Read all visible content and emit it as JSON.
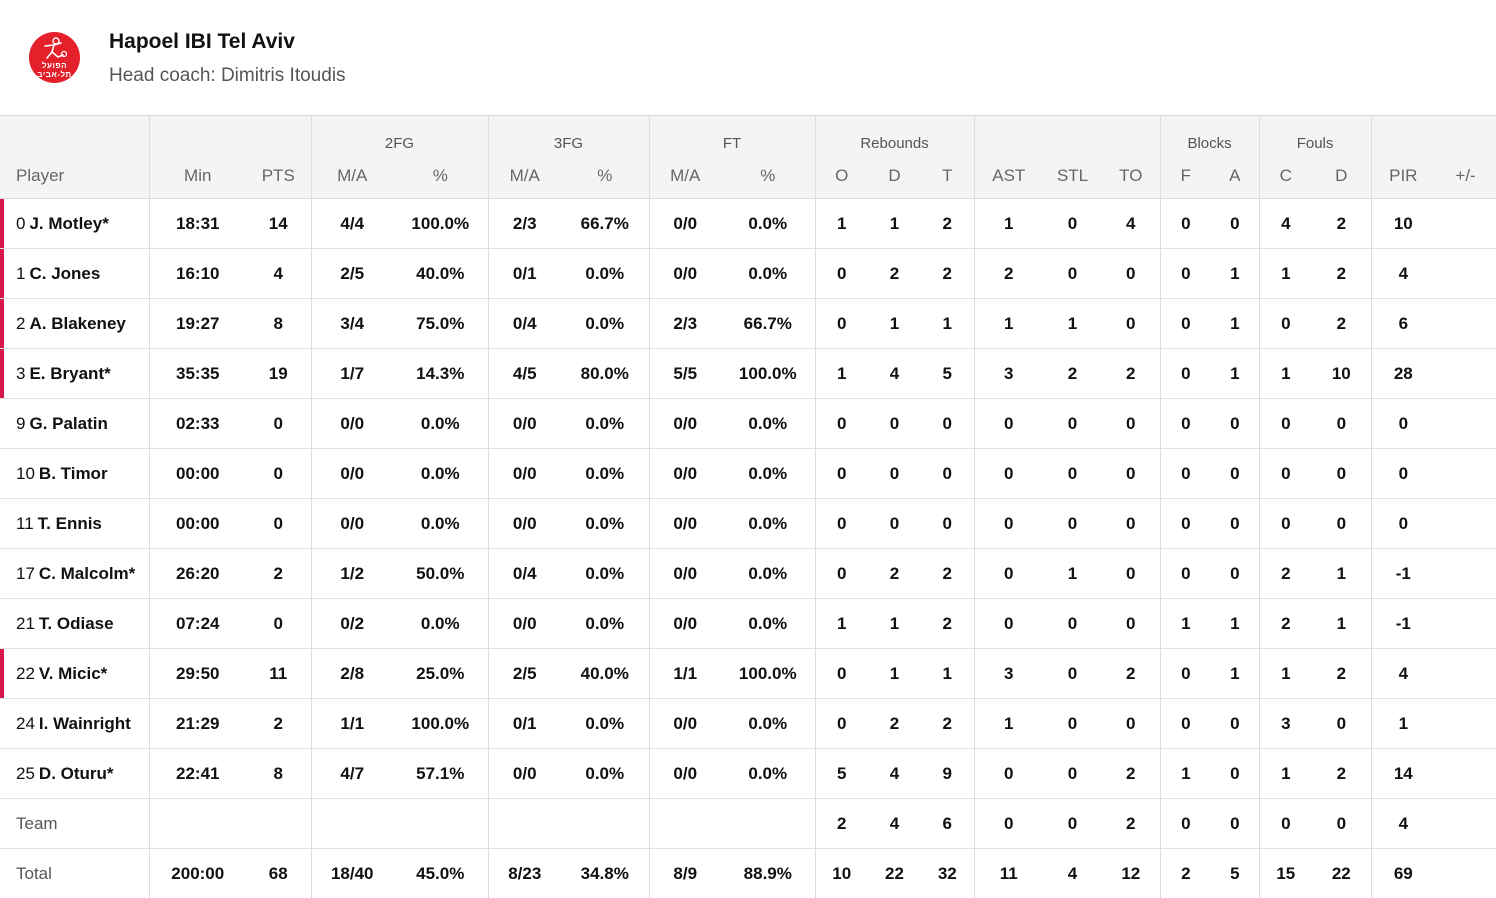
{
  "team": {
    "name": "Hapoel IBI Tel Aviv",
    "coach": "Head coach: Dimitris Itoudis",
    "logo_text": [
      "הפועל",
      "תל-אביב"
    ],
    "logo_color": "#e4202b"
  },
  "accent_color": "#d7174a",
  "group_headers": {
    "fg2": "2FG",
    "fg3": "3FG",
    "ft": "FT",
    "rebounds": "Rebounds",
    "blocks": "Blocks",
    "fouls": "Fouls"
  },
  "columns": [
    "Player",
    "Min",
    "PTS",
    "M/A",
    "%",
    "M/A",
    "%",
    "M/A",
    "%",
    "O",
    "D",
    "T",
    "AST",
    "STL",
    "TO",
    "F",
    "A",
    "C",
    "D",
    "PIR",
    "+/-"
  ],
  "players": [
    {
      "num": "0",
      "name": "J. Motley*",
      "starter": true,
      "stats": [
        "18:31",
        "14",
        "4/4",
        "100.0%",
        "2/3",
        "66.7%",
        "0/0",
        "0.0%",
        "1",
        "1",
        "2",
        "1",
        "0",
        "4",
        "0",
        "0",
        "4",
        "2",
        "10",
        ""
      ]
    },
    {
      "num": "1",
      "name": "C. Jones",
      "starter": true,
      "stats": [
        "16:10",
        "4",
        "2/5",
        "40.0%",
        "0/1",
        "0.0%",
        "0/0",
        "0.0%",
        "0",
        "2",
        "2",
        "2",
        "0",
        "0",
        "0",
        "1",
        "1",
        "2",
        "4",
        ""
      ]
    },
    {
      "num": "2",
      "name": "A. Blakeney",
      "starter": true,
      "stats": [
        "19:27",
        "8",
        "3/4",
        "75.0%",
        "0/4",
        "0.0%",
        "2/3",
        "66.7%",
        "0",
        "1",
        "1",
        "1",
        "1",
        "0",
        "0",
        "1",
        "0",
        "2",
        "6",
        ""
      ]
    },
    {
      "num": "3",
      "name": "E. Bryant*",
      "starter": true,
      "stats": [
        "35:35",
        "19",
        "1/7",
        "14.3%",
        "4/5",
        "80.0%",
        "5/5",
        "100.0%",
        "1",
        "4",
        "5",
        "3",
        "2",
        "2",
        "0",
        "1",
        "1",
        "10",
        "28",
        ""
      ]
    },
    {
      "num": "9",
      "name": "G. Palatin",
      "starter": false,
      "stats": [
        "02:33",
        "0",
        "0/0",
        "0.0%",
        "0/0",
        "0.0%",
        "0/0",
        "0.0%",
        "0",
        "0",
        "0",
        "0",
        "0",
        "0",
        "0",
        "0",
        "0",
        "0",
        "0",
        ""
      ]
    },
    {
      "num": "10",
      "name": "B. Timor",
      "starter": false,
      "stats": [
        "00:00",
        "0",
        "0/0",
        "0.0%",
        "0/0",
        "0.0%",
        "0/0",
        "0.0%",
        "0",
        "0",
        "0",
        "0",
        "0",
        "0",
        "0",
        "0",
        "0",
        "0",
        "0",
        ""
      ]
    },
    {
      "num": "11",
      "name": "T. Ennis",
      "starter": false,
      "stats": [
        "00:00",
        "0",
        "0/0",
        "0.0%",
        "0/0",
        "0.0%",
        "0/0",
        "0.0%",
        "0",
        "0",
        "0",
        "0",
        "0",
        "0",
        "0",
        "0",
        "0",
        "0",
        "0",
        ""
      ]
    },
    {
      "num": "17",
      "name": "C. Malcolm*",
      "starter": false,
      "stats": [
        "26:20",
        "2",
        "1/2",
        "50.0%",
        "0/4",
        "0.0%",
        "0/0",
        "0.0%",
        "0",
        "2",
        "2",
        "0",
        "1",
        "0",
        "0",
        "0",
        "2",
        "1",
        "-1",
        ""
      ]
    },
    {
      "num": "21",
      "name": "T. Odiase",
      "starter": false,
      "stats": [
        "07:24",
        "0",
        "0/2",
        "0.0%",
        "0/0",
        "0.0%",
        "0/0",
        "0.0%",
        "1",
        "1",
        "2",
        "0",
        "0",
        "0",
        "1",
        "1",
        "2",
        "1",
        "-1",
        ""
      ]
    },
    {
      "num": "22",
      "name": "V. Micic*",
      "starter": true,
      "stats": [
        "29:50",
        "11",
        "2/8",
        "25.0%",
        "2/5",
        "40.0%",
        "1/1",
        "100.0%",
        "0",
        "1",
        "1",
        "3",
        "0",
        "2",
        "0",
        "1",
        "1",
        "2",
        "4",
        ""
      ]
    },
    {
      "num": "24",
      "name": "I. Wainright",
      "starter": false,
      "stats": [
        "21:29",
        "2",
        "1/1",
        "100.0%",
        "0/1",
        "0.0%",
        "0/0",
        "0.0%",
        "0",
        "2",
        "2",
        "1",
        "0",
        "0",
        "0",
        "0",
        "3",
        "0",
        "1",
        ""
      ]
    },
    {
      "num": "25",
      "name": "D. Oturu*",
      "starter": false,
      "stats": [
        "22:41",
        "8",
        "4/7",
        "57.1%",
        "0/0",
        "0.0%",
        "0/0",
        "0.0%",
        "5",
        "4",
        "9",
        "0",
        "0",
        "2",
        "1",
        "0",
        "1",
        "2",
        "14",
        ""
      ]
    }
  ],
  "team_row": {
    "label": "Team",
    "stats": [
      "",
      "",
      "",
      "",
      "",
      "",
      "",
      "",
      "2",
      "4",
      "6",
      "0",
      "0",
      "2",
      "0",
      "0",
      "0",
      "0",
      "4",
      ""
    ]
  },
  "total_row": {
    "label": "Total",
    "stats": [
      "200:00",
      "68",
      "18/40",
      "45.0%",
      "8/23",
      "34.8%",
      "8/9",
      "88.9%",
      "10",
      "22",
      "32",
      "11",
      "4",
      "12",
      "2",
      "5",
      "15",
      "22",
      "69",
      ""
    ]
  }
}
